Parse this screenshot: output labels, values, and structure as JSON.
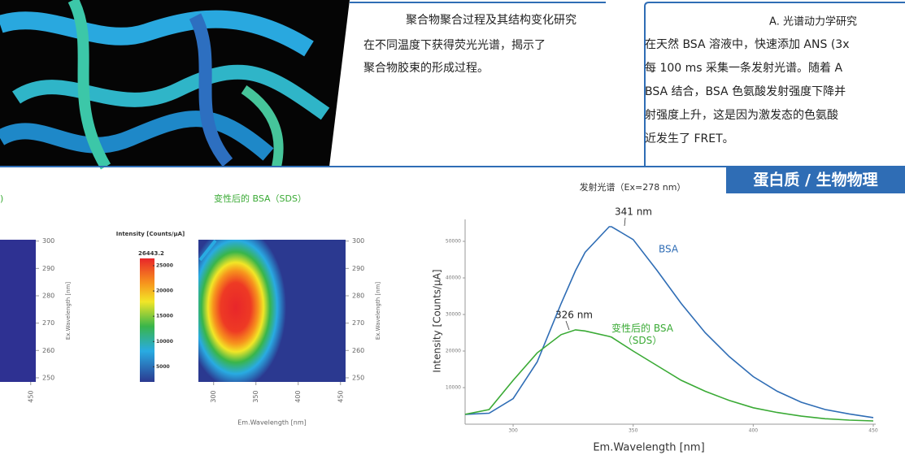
{
  "top_middle": {
    "title": "聚合物聚合过程及其结构变化研究",
    "lines": [
      "在不同温度下获得荧光光谱，揭示了",
      "聚合物胶束的形成过程。"
    ]
  },
  "top_right": {
    "title": "A. 光谱动力学研究",
    "lines": [
      "在天然 BSA 溶液中，快速添加 ANS (3x",
      "每 100 ms 采集一条发射光谱。随着 A",
      "BSA 结合，BSA 色氨酸发射强度下降并",
      "射强度上升，这是因为激发态的色氨酸",
      "近发生了 FRET。"
    ]
  },
  "section_badge": "蛋白质 / 生物物理",
  "chart_data": [
    {
      "type": "heatmap",
      "title": ")",
      "xlim": [
        282,
        456
      ],
      "xticks": [
        450
      ],
      "ylim": [
        248.5,
        300.5
      ],
      "yticks": [
        250,
        260,
        270,
        280,
        290,
        300
      ],
      "ylabel": "Ex.Wavelength [nm]"
    },
    {
      "type": "heatmap",
      "title": "变性后的 BSA（SDS）",
      "colorbar_title": "Intensity [Counts/μA]",
      "clim": [
        2000,
        26443.2
      ],
      "cticks": [
        5000,
        10000,
        15000,
        20000,
        25000
      ],
      "xlim": [
        282,
        456
      ],
      "xticks": [
        300,
        350,
        400,
        450
      ],
      "xlabel": "Em.Wavelength [nm]",
      "ylim": [
        248.5,
        300.5
      ],
      "yticks": [
        250,
        260,
        270,
        280,
        290,
        300
      ],
      "ylabel": "Ex.Wavelength [nm]"
    },
    {
      "type": "line",
      "title": "发射光谱（Ex=278 nm）",
      "xlabel": "Em.Wavelength [nm]",
      "ylabel": "Intensity [Counts/μA]",
      "xlim": [
        280,
        450
      ],
      "xticks": [
        300,
        350,
        400,
        450
      ],
      "ylim": [
        0,
        56000
      ],
      "yticks": [
        10000,
        20000,
        30000,
        40000,
        50000
      ],
      "x": [
        280,
        290,
        300,
        310,
        320,
        326,
        330,
        340,
        341,
        350,
        360,
        370,
        380,
        390,
        400,
        410,
        420,
        430,
        440,
        450
      ],
      "series": [
        {
          "name": "BSA",
          "color": "#2f6db5",
          "values": [
            2700,
            3000,
            7000,
            17000,
            33000,
            42000,
            47000,
            54000,
            54000,
            50500,
            42000,
            33000,
            25000,
            18500,
            13000,
            9000,
            6000,
            4000,
            2800,
            1800
          ]
        },
        {
          "name": "变性后的 BSA（SDS）",
          "color": "#3aaa35",
          "values": [
            2700,
            4000,
            12000,
            19500,
            24500,
            25800,
            25500,
            24000,
            23800,
            20000,
            16000,
            12000,
            9000,
            6500,
            4500,
            3200,
            2200,
            1500,
            1100,
            900
          ]
        }
      ],
      "annotations": [
        "341 nm",
        "326 nm"
      ]
    }
  ]
}
